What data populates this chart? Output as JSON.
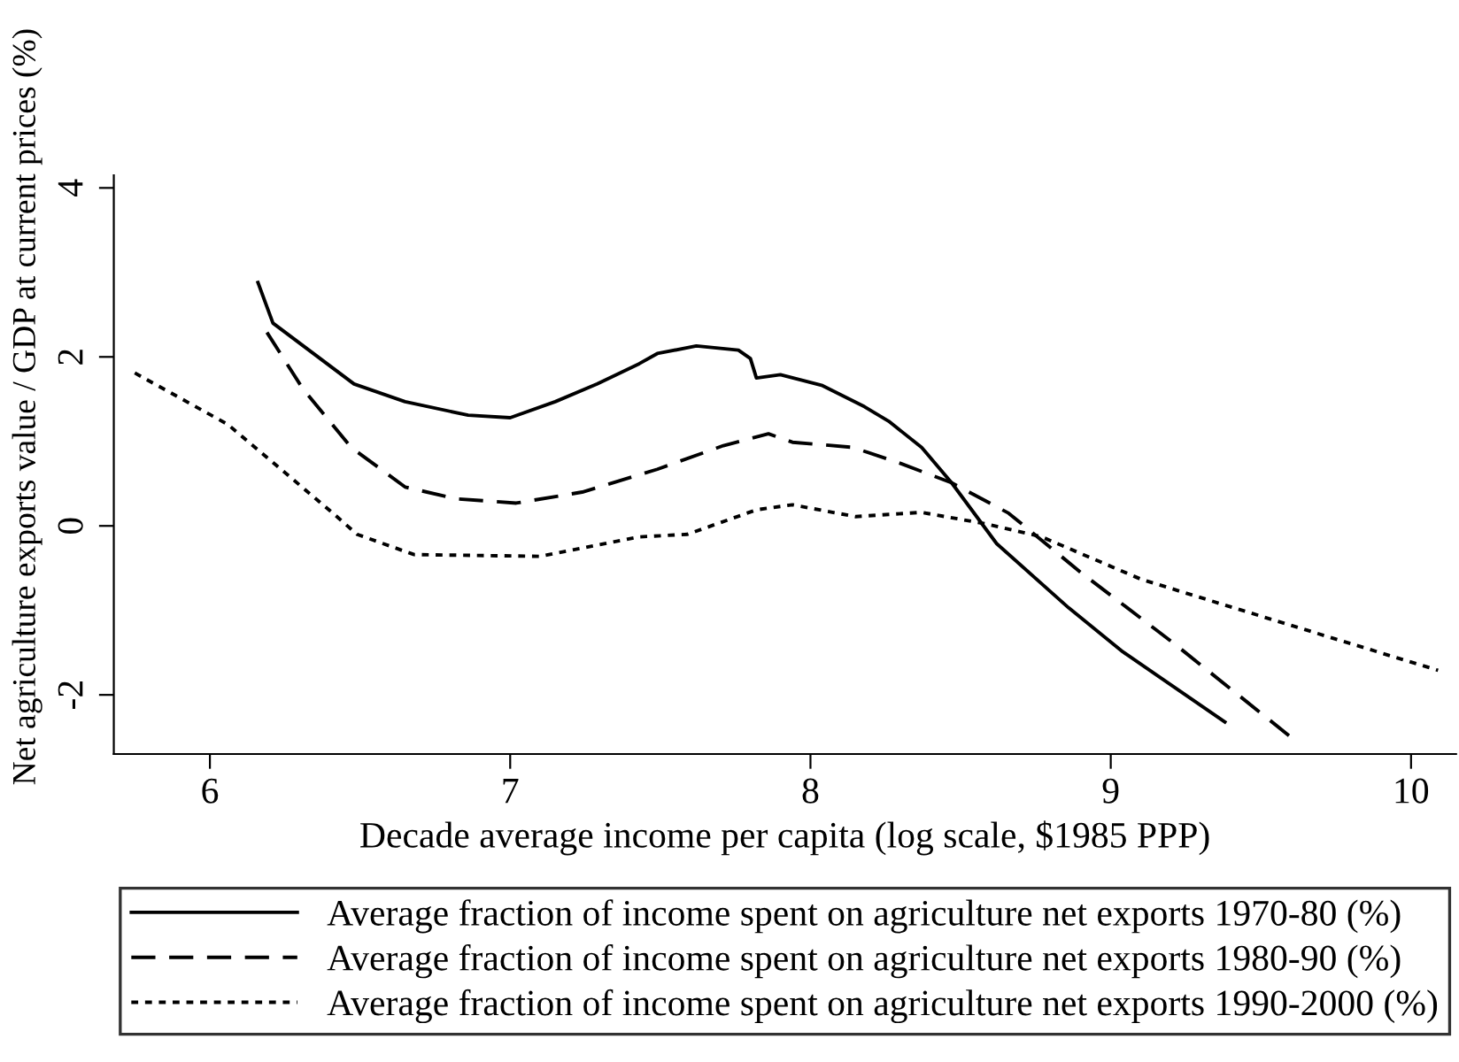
{
  "chart_data": {
    "type": "line",
    "xlabel": "Decade average income per capita (log scale, $1985 PPP)",
    "ylabel": "Net agriculture exports value / GDP at current prices (%)",
    "xlim": [
      5.68,
      10.15
    ],
    "xticks": [
      6,
      7,
      8,
      9,
      10
    ],
    "ylim": [
      -2.7,
      4.15
    ],
    "yticks": [
      -2,
      0,
      2,
      4
    ],
    "grid": false,
    "legend": "bottom",
    "marker": "none",
    "series": [
      {
        "name": "Average fraction of income spent on agriculture net exports 1970-80 (%)",
        "color": "#000000",
        "line_style": "solid",
        "x": [
          6.16,
          6.21,
          6.48,
          6.65,
          6.86,
          7.0,
          7.15,
          7.29,
          7.43,
          7.49,
          7.62,
          7.76,
          7.8,
          7.82,
          7.9,
          8.04,
          8.18,
          8.26,
          8.37,
          8.47,
          8.62,
          8.86,
          9.04,
          9.38
        ],
        "values": [
          2.88,
          2.4,
          1.68,
          1.47,
          1.31,
          1.28,
          1.47,
          1.68,
          1.92,
          2.04,
          2.13,
          2.08,
          1.98,
          1.75,
          1.79,
          1.66,
          1.41,
          1.24,
          0.93,
          0.51,
          -0.21,
          -0.97,
          -1.49,
          -2.32
        ]
      },
      {
        "name": "Average fraction of income spent on agriculture net exports 1980-90 (%)",
        "color": "#000000",
        "line_style": "dashed",
        "x": [
          6.19,
          6.31,
          6.47,
          6.65,
          6.82,
          7.02,
          7.24,
          7.49,
          7.71,
          7.86,
          7.94,
          8.14,
          8.3,
          8.47,
          8.66,
          8.9,
          9.21,
          9.6
        ],
        "values": [
          2.29,
          1.62,
          0.93,
          0.46,
          0.32,
          0.27,
          0.4,
          0.67,
          0.95,
          1.09,
          0.99,
          0.93,
          0.74,
          0.51,
          0.15,
          -0.55,
          -1.39,
          -2.5
        ]
      },
      {
        "name": "Average fraction of income spent on agriculture net exports 1990-2000 (%)",
        "color": "#000000",
        "line_style": "dotted",
        "x": [
          5.75,
          6.06,
          6.41,
          6.49,
          6.68,
          7.1,
          7.43,
          7.59,
          7.82,
          7.94,
          8.15,
          8.37,
          8.59,
          8.77,
          9.1,
          9.41,
          10.09
        ],
        "values": [
          1.81,
          1.2,
          0.15,
          -0.1,
          -0.34,
          -0.36,
          -0.13,
          -0.1,
          0.19,
          0.25,
          0.11,
          0.16,
          0.02,
          -0.13,
          -0.63,
          -0.97,
          -1.71
        ]
      }
    ]
  }
}
